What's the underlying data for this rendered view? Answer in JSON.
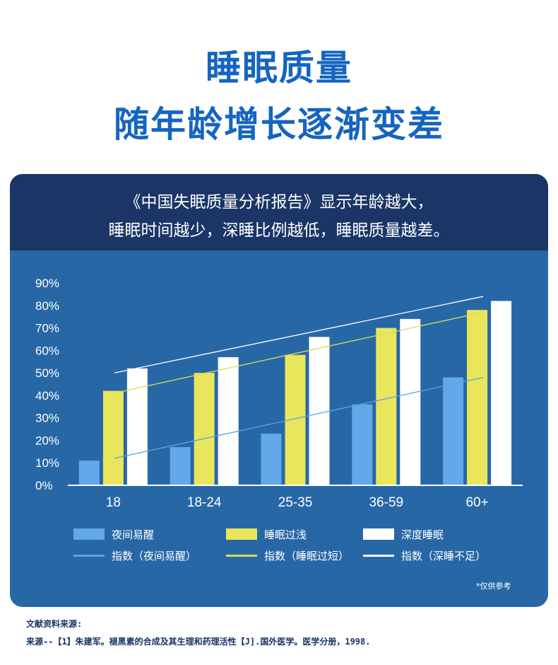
{
  "heading": {
    "line1": "睡眠质量",
    "line2": "随年龄增长逐渐变差"
  },
  "card": {
    "headline1": "《中国失眠质量分析报告》显示年龄越大，",
    "headline2": "睡眠时间越少，深睡比例越低，睡眠质量越差。",
    "note": "*仅供参考"
  },
  "chart_data": {
    "type": "bar",
    "categories": [
      "18",
      "18-24",
      "25-35",
      "36-59",
      "60+"
    ],
    "ylim": [
      0,
      90
    ],
    "yticks": [
      "0%",
      "10%",
      "20%",
      "30%",
      "40%",
      "50%",
      "60%",
      "70%",
      "80%",
      "90%"
    ],
    "series": [
      {
        "name": "夜间易醒",
        "values": [
          11,
          17,
          23,
          36,
          48
        ],
        "color": "#63a8e8"
      },
      {
        "name": "睡眠过浅",
        "values": [
          42,
          50,
          58,
          70,
          78
        ],
        "color": "#e9e65b"
      },
      {
        "name": "深度睡眠",
        "values": [
          52,
          57,
          66,
          74,
          82
        ],
        "color": "#ffffff"
      }
    ],
    "index_lines": [
      {
        "name": "指数（夜间易醒）",
        "from": 12,
        "to": 48,
        "color": "#5aa4e6"
      },
      {
        "name": "指数（睡眠过短）",
        "from": 41,
        "to": 77,
        "color": "#d8dc58"
      },
      {
        "name": "指数（深睡不足）",
        "from": 50,
        "to": 84,
        "color": "#ffffff"
      }
    ],
    "grid": false,
    "legend_position": "bottom"
  },
  "source": {
    "label": "文献资料来源:",
    "text": "来源--【1】朱建军。褪黑素的合成及其生理和药理活性【J].国外医学。医学分册，1998."
  }
}
